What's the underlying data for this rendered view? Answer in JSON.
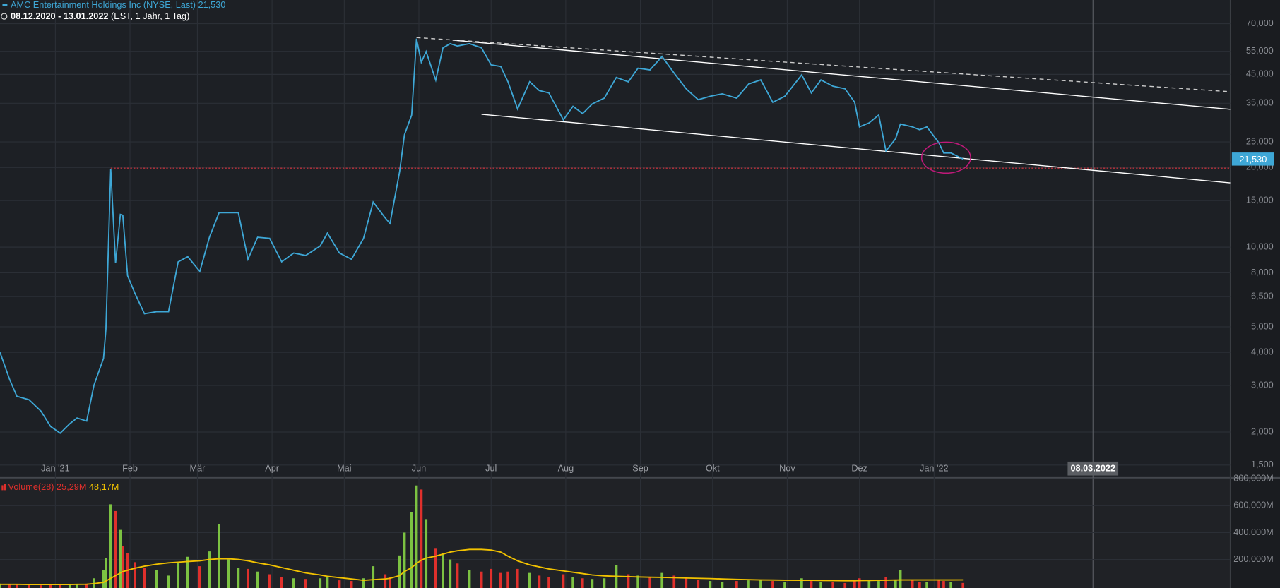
{
  "chart_data": [
    {
      "type": "line",
      "title": "AMC Entertainment Holdings Inc (NYSE, Last)",
      "subtitle": "08.12.2020 - 13.01.2022",
      "timeframe": "(EST, 1 Jahr, 1 Tag)",
      "log_y": true,
      "grid": true,
      "xlim": [
        "2020-12-09",
        "2022-05-04"
      ],
      "ylim": [
        1.37,
        86
      ],
      "xticks": [
        {
          "value": "2021-01-01",
          "label": "Jan '21"
        },
        {
          "value": "2021-02-01",
          "label": "Feb"
        },
        {
          "value": "2021-03-01",
          "label": "Mär"
        },
        {
          "value": "2021-04-01",
          "label": "Apr"
        },
        {
          "value": "2021-05-01",
          "label": "Mai"
        },
        {
          "value": "2021-06-01",
          "label": "Jun"
        },
        {
          "value": "2021-07-01",
          "label": "Jul"
        },
        {
          "value": "2021-08-01",
          "label": "Aug"
        },
        {
          "value": "2021-09-01",
          "label": "Sep"
        },
        {
          "value": "2021-10-01",
          "label": "Okt"
        },
        {
          "value": "2021-11-01",
          "label": "Nov"
        },
        {
          "value": "2021-12-01",
          "label": "Dez"
        },
        {
          "value": "2022-01-01",
          "label": "Jan '22"
        }
      ],
      "yticks": [
        {
          "value": 70,
          "label": "70,000"
        },
        {
          "value": 55,
          "label": "55,000"
        },
        {
          "value": 45,
          "label": "45,000"
        },
        {
          "value": 35,
          "label": "35,000"
        },
        {
          "value": 25,
          "label": "25,000"
        },
        {
          "value": 20,
          "label": "20,000"
        },
        {
          "value": 15,
          "label": "15,000"
        },
        {
          "value": 10,
          "label": "10,000"
        },
        {
          "value": 8,
          "label": "8,000"
        },
        {
          "value": 6.5,
          "label": "6,500"
        },
        {
          "value": 5,
          "label": "5,000"
        },
        {
          "value": 4,
          "label": "4,000"
        },
        {
          "value": 3,
          "label": "3,000"
        },
        {
          "value": 2,
          "label": "2,000"
        },
        {
          "value": 1.5,
          "label": "1,500"
        }
      ],
      "marker": {
        "value": "2022-03-08",
        "label": "08.03.2022"
      },
      "x": [
        "2020-12-09",
        "2020-12-13",
        "2020-12-16",
        "2020-12-21",
        "2020-12-26",
        "2020-12-30",
        "2021-01-03",
        "2021-01-07",
        "2021-01-10",
        "2021-01-14",
        "2021-01-17",
        "2021-01-21",
        "2021-01-22",
        "2021-01-24",
        "2021-01-26",
        "2021-01-28",
        "2021-01-29",
        "2021-01-31",
        "2021-02-03",
        "2021-02-07",
        "2021-02-12",
        "2021-02-17",
        "2021-02-21",
        "2021-02-25",
        "2021-03-02",
        "2021-03-06",
        "2021-03-10",
        "2021-03-14",
        "2021-03-18",
        "2021-03-22",
        "2021-03-26",
        "2021-03-31",
        "2021-04-05",
        "2021-04-10",
        "2021-04-15",
        "2021-04-21",
        "2021-04-24",
        "2021-04-29",
        "2021-05-04",
        "2021-05-09",
        "2021-05-13",
        "2021-05-18",
        "2021-05-20",
        "2021-05-24",
        "2021-05-26",
        "2021-05-29",
        "2021-05-31",
        "2021-06-02",
        "2021-06-04",
        "2021-06-08",
        "2021-06-11",
        "2021-06-14",
        "2021-06-17",
        "2021-06-22",
        "2021-06-27",
        "2021-07-01",
        "2021-07-05",
        "2021-07-08",
        "2021-07-12",
        "2021-07-17",
        "2021-07-21",
        "2021-07-25",
        "2021-07-31",
        "2021-08-04",
        "2021-08-08",
        "2021-08-12",
        "2021-08-17",
        "2021-08-22",
        "2021-08-27",
        "2021-08-31",
        "2021-09-05",
        "2021-09-10",
        "2021-09-15",
        "2021-09-20",
        "2021-09-25",
        "2021-09-30",
        "2021-10-05",
        "2021-10-11",
        "2021-10-16",
        "2021-10-21",
        "2021-10-26",
        "2021-10-31",
        "2021-11-07",
        "2021-11-11",
        "2021-11-15",
        "2021-11-20",
        "2021-11-25",
        "2021-11-29",
        "2021-12-01",
        "2021-12-05",
        "2021-12-09",
        "2021-12-12",
        "2021-12-16",
        "2021-12-18",
        "2021-12-23",
        "2021-12-26",
        "2021-12-29",
        "2022-01-03",
        "2022-01-05",
        "2022-01-08",
        "2022-01-13"
      ],
      "series": [
        {
          "name": "AMC Entertainment Holdings Inc (NYSE, Last)",
          "color": "#3ea7d6",
          "values": [
            4.0,
            3.16,
            2.73,
            2.65,
            2.4,
            2.1,
            1.98,
            2.15,
            2.26,
            2.2,
            3.0,
            3.8,
            4.9,
            19.7,
            8.7,
            13.3,
            13.2,
            7.8,
            6.7,
            5.6,
            5.7,
            5.7,
            8.8,
            9.2,
            8.1,
            10.9,
            13.5,
            13.5,
            13.5,
            9.0,
            10.9,
            10.8,
            8.8,
            9.5,
            9.3,
            10.1,
            11.3,
            9.5,
            9.0,
            10.8,
            14.8,
            12.9,
            12.3,
            19.3,
            26.6,
            31.6,
            61.4,
            50.0,
            54.9,
            42.8,
            56.7,
            58.8,
            57.6,
            58.8,
            56.7,
            48.9,
            48.2,
            42.2,
            33.3,
            42.2,
            39.1,
            38.3,
            30.3,
            34.1,
            32.0,
            34.8,
            36.6,
            43.8,
            42.2,
            47.5,
            46.8,
            52.6,
            45.5,
            39.7,
            36.1,
            37.2,
            38.0,
            36.6,
            41.4,
            42.9,
            35.3,
            37.2,
            44.8,
            38.3,
            42.9,
            40.6,
            39.7,
            35.3,
            28.5,
            29.5,
            31.6,
            23.1,
            25.7,
            29.2,
            28.5,
            27.8,
            28.5,
            24.8,
            22.7,
            22.7,
            21.53
          ],
          "last_label": {
            "value": 21.53,
            "label": "21,530"
          }
        }
      ],
      "trend_lines": [
        {
          "x": [
            "2021-06-15",
            "2022-05-04"
          ],
          "y": [
            60.6,
            33.2
          ],
          "style": "solid",
          "color": "#ffffff"
        },
        {
          "x": [
            "2021-06-27",
            "2022-05-04"
          ],
          "y": [
            31.8,
            17.5
          ],
          "style": "solid",
          "color": "#ffffff"
        },
        {
          "x": [
            "2021-05-31",
            "2022-05-04"
          ],
          "y": [
            62.0,
            38.7
          ],
          "style": "dashed",
          "color": "#cccccc"
        }
      ],
      "level": {
        "value": 19.9,
        "from": "2021-01-24",
        "color": "#d9333f"
      },
      "highlight": {
        "x": "2022-01-06",
        "y": 21.8,
        "color": "#c0197a"
      }
    },
    {
      "type": "bar",
      "title": "Volume(28)",
      "up_color": "#7cc242",
      "down_color": "#e0302c",
      "ylim": [
        0,
        800
      ],
      "yticks": [
        {
          "value": 200,
          "label": "200,000M"
        },
        {
          "value": 400,
          "label": "400,000M"
        },
        {
          "value": 600,
          "label": "600,000M"
        },
        {
          "value": 800,
          "label": "800,000M"
        }
      ],
      "x": [
        "2020-12-09",
        "2020-12-13",
        "2020-12-16",
        "2020-12-21",
        "2020-12-26",
        "2020-12-30",
        "2021-01-03",
        "2021-01-07",
        "2021-01-10",
        "2021-01-14",
        "2021-01-17",
        "2021-01-21",
        "2021-01-22",
        "2021-01-24",
        "2021-01-26",
        "2021-01-28",
        "2021-01-29",
        "2021-01-31",
        "2021-02-03",
        "2021-02-07",
        "2021-02-12",
        "2021-02-17",
        "2021-02-21",
        "2021-02-25",
        "2021-03-02",
        "2021-03-06",
        "2021-03-10",
        "2021-03-14",
        "2021-03-18",
        "2021-03-22",
        "2021-03-26",
        "2021-03-31",
        "2021-04-05",
        "2021-04-10",
        "2021-04-15",
        "2021-04-21",
        "2021-04-24",
        "2021-04-29",
        "2021-05-04",
        "2021-05-09",
        "2021-05-13",
        "2021-05-18",
        "2021-05-20",
        "2021-05-24",
        "2021-05-26",
        "2021-05-29",
        "2021-05-31",
        "2021-06-02",
        "2021-06-04",
        "2021-06-08",
        "2021-06-11",
        "2021-06-14",
        "2021-06-17",
        "2021-06-22",
        "2021-06-27",
        "2021-07-01",
        "2021-07-05",
        "2021-07-08",
        "2021-07-12",
        "2021-07-17",
        "2021-07-21",
        "2021-07-25",
        "2021-07-31",
        "2021-08-04",
        "2021-08-08",
        "2021-08-12",
        "2021-08-17",
        "2021-08-22",
        "2021-08-27",
        "2021-08-31",
        "2021-09-05",
        "2021-09-10",
        "2021-09-15",
        "2021-09-20",
        "2021-09-25",
        "2021-09-30",
        "2021-10-05",
        "2021-10-11",
        "2021-10-16",
        "2021-10-21",
        "2021-10-26",
        "2021-10-31",
        "2021-11-07",
        "2021-11-11",
        "2021-11-15",
        "2021-11-20",
        "2021-11-25",
        "2021-11-29",
        "2021-12-01",
        "2021-12-05",
        "2021-12-09",
        "2021-12-12",
        "2021-12-16",
        "2021-12-18",
        "2021-12-23",
        "2021-12-26",
        "2021-12-29",
        "2022-01-03",
        "2022-01-05",
        "2022-01-08",
        "2022-01-13"
      ],
      "values": [
        20,
        15,
        12,
        10,
        8,
        10,
        12,
        15,
        12,
        20,
        60,
        120,
        210,
        610,
        560,
        420,
        300,
        250,
        180,
        140,
        120,
        80,
        180,
        220,
        150,
        260,
        460,
        200,
        140,
        130,
        110,
        90,
        70,
        60,
        55,
        60,
        70,
        45,
        40,
        60,
        150,
        90,
        70,
        230,
        400,
        550,
        750,
        720,
        500,
        280,
        250,
        200,
        170,
        120,
        110,
        130,
        100,
        110,
        130,
        100,
        80,
        70,
        90,
        70,
        60,
        55,
        60,
        160,
        90,
        80,
        70,
        100,
        80,
        60,
        50,
        40,
        35,
        40,
        45,
        50,
        40,
        35,
        60,
        40,
        35,
        30,
        25,
        40,
        60,
        45,
        40,
        70,
        50,
        120,
        45,
        35,
        30,
        45,
        40,
        30,
        25.29
      ],
      "last_label": {
        "value": 25.29,
        "label": "25,29M"
      },
      "average": {
        "color": "#f2c200",
        "values": [
          15,
          15,
          15,
          14,
          14,
          14,
          14,
          14,
          15,
          16,
          20,
          30,
          40,
          60,
          80,
          100,
          110,
          120,
          135,
          150,
          165,
          175,
          180,
          185,
          190,
          200,
          205,
          205,
          200,
          190,
          175,
          160,
          140,
          120,
          100,
          85,
          75,
          65,
          55,
          45,
          50,
          55,
          60,
          80,
          110,
          140,
          170,
          195,
          210,
          225,
          240,
          255,
          265,
          275,
          275,
          270,
          255,
          225,
          190,
          160,
          145,
          130,
          115,
          105,
          95,
          85,
          78,
          75,
          72,
          70,
          68,
          67,
          65,
          62,
          60,
          58,
          55,
          52,
          50,
          48,
          47,
          46,
          45,
          45,
          44,
          43,
          42,
          42,
          43,
          44,
          45,
          46,
          47,
          48,
          48,
          48,
          48,
          48,
          48,
          48,
          48.17
        ],
        "last_label": {
          "value": 48.17,
          "label": "48,17M"
        }
      }
    }
  ]
}
